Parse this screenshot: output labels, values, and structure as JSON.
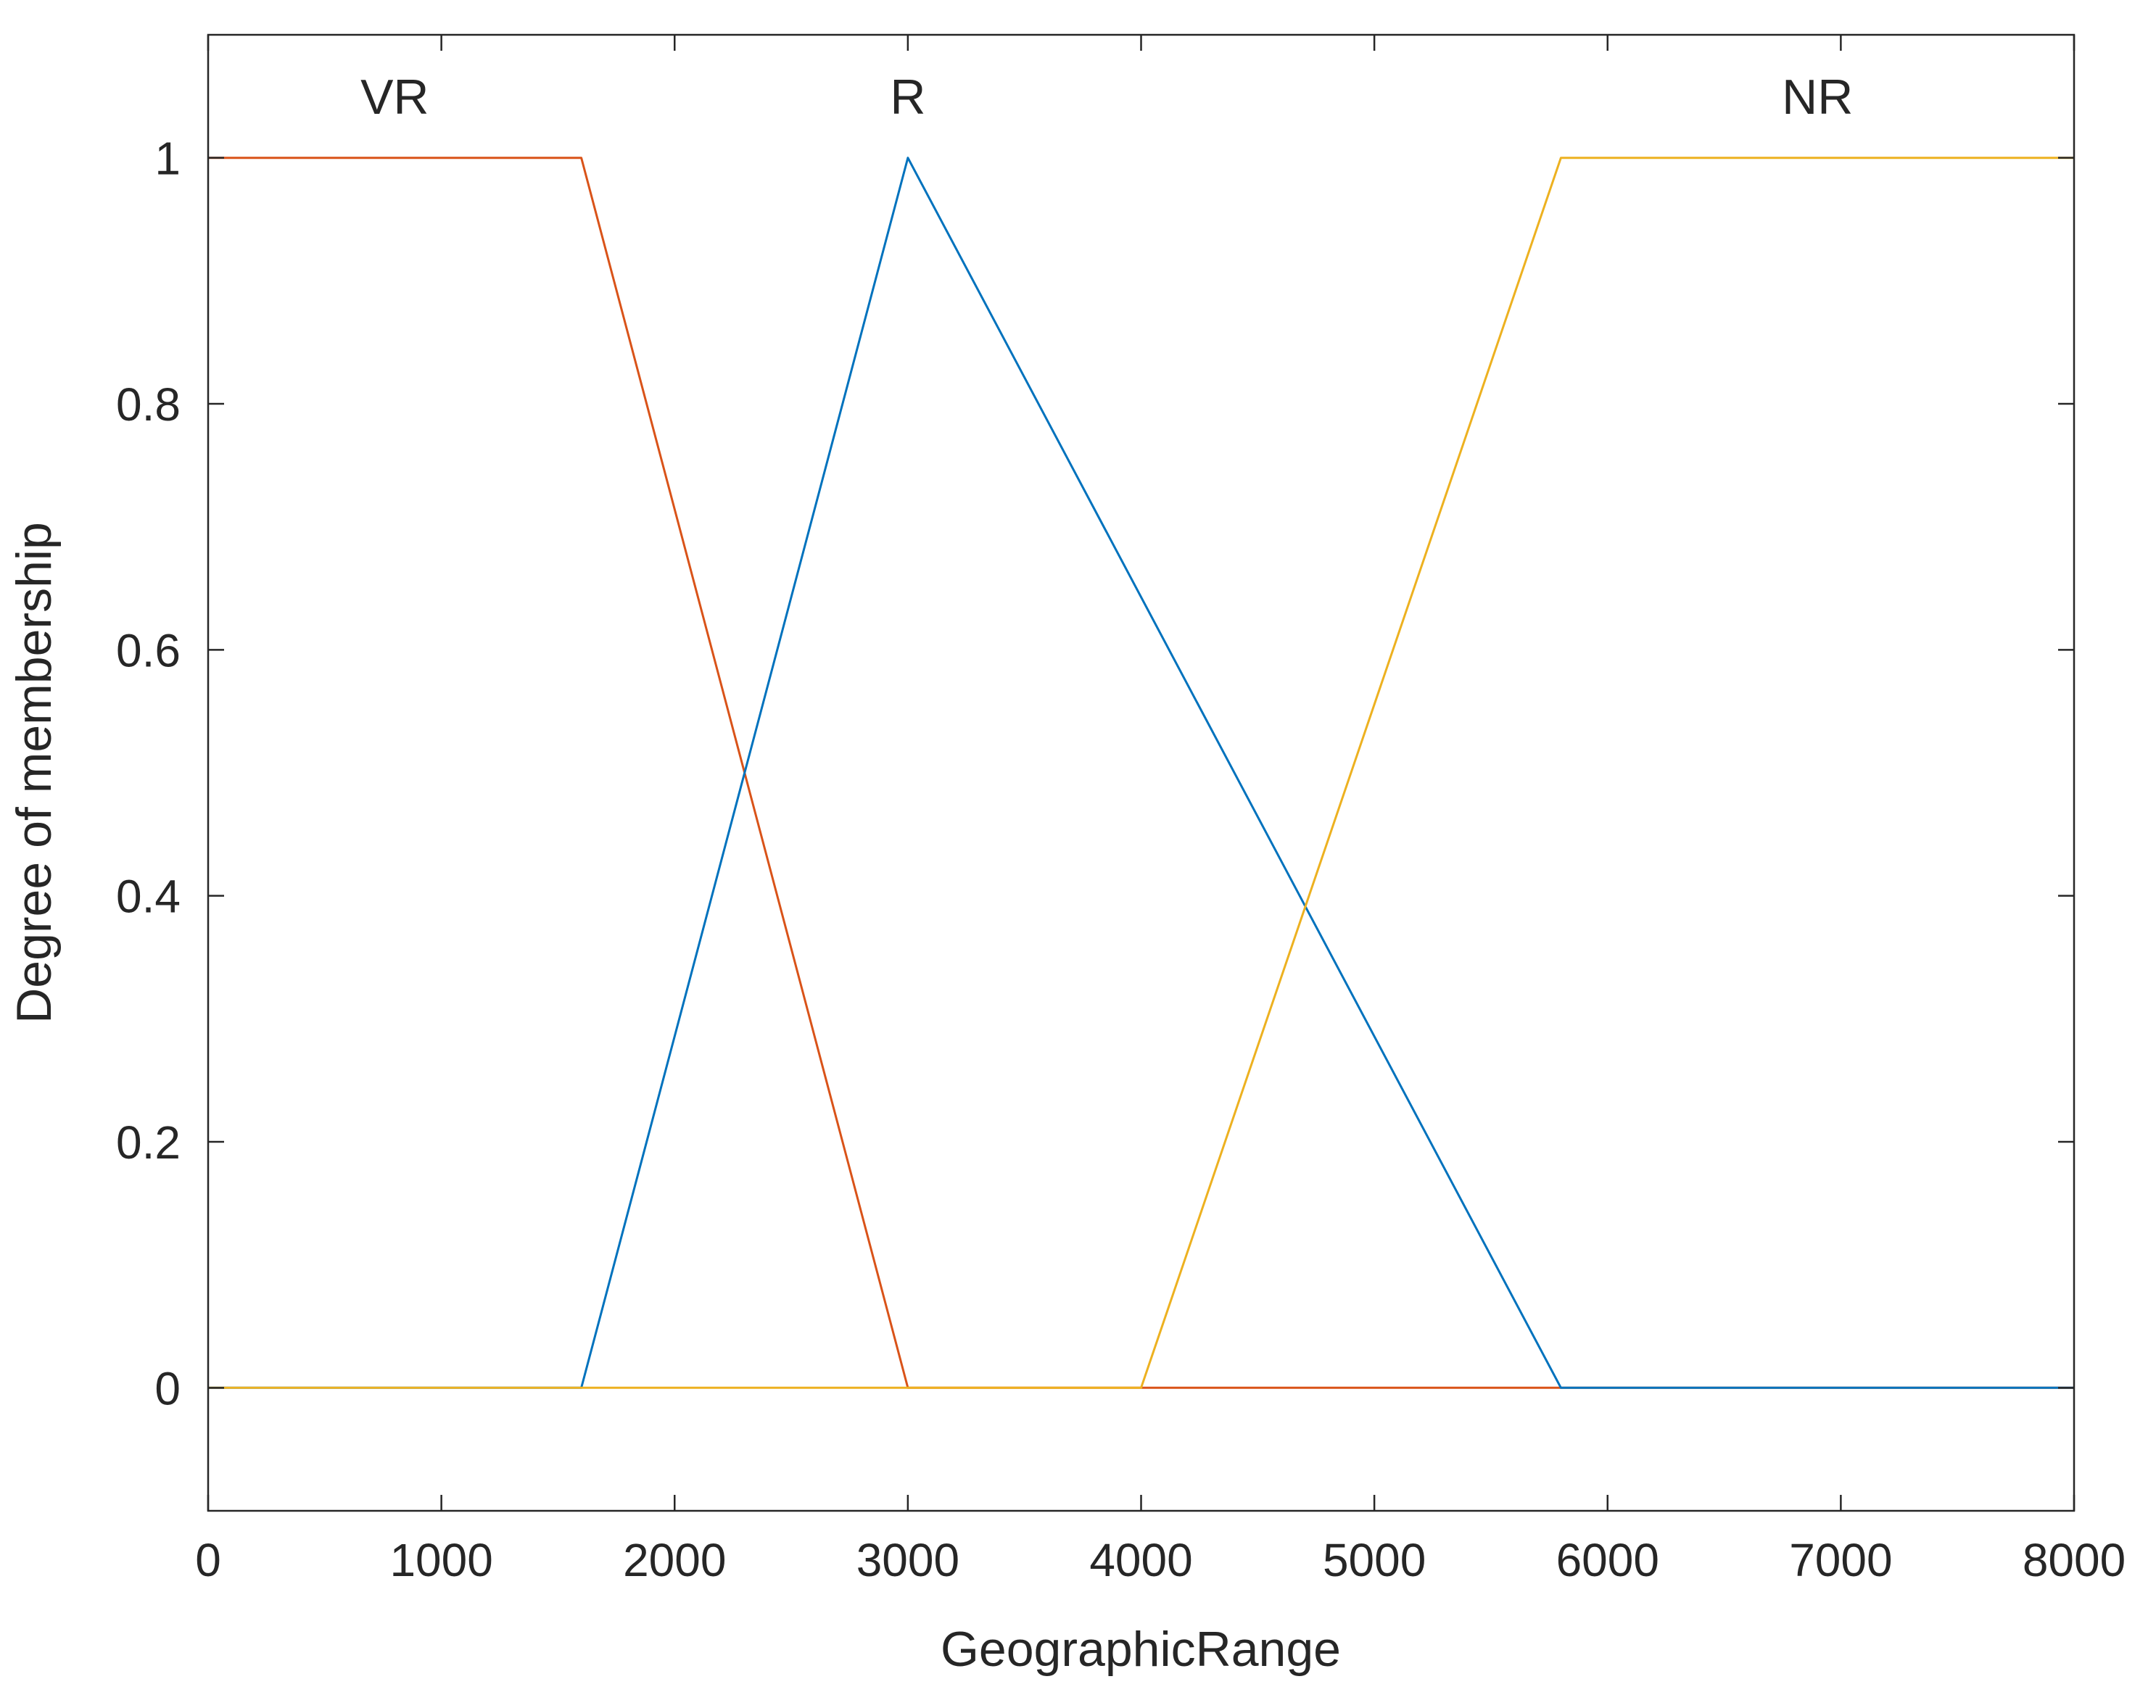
{
  "chart_data": {
    "type": "line",
    "xlabel": "GeographicRange",
    "ylabel": "Degree of membership",
    "xlim": [
      0,
      8000
    ],
    "ylim": [
      -0.1,
      1.1
    ],
    "xticks": [
      0,
      1000,
      2000,
      3000,
      4000,
      5000,
      6000,
      7000,
      8000
    ],
    "yticks": [
      0,
      0.2,
      0.4,
      0.6,
      0.8,
      1
    ],
    "ytick_labels": [
      "0",
      "0.2",
      "0.4",
      "0.6",
      "0.8",
      "1"
    ],
    "grid": false,
    "series": [
      {
        "name": "VR",
        "color": "#D95319",
        "x": [
          0,
          1600,
          3000,
          8000
        ],
        "y": [
          1,
          1,
          0,
          0
        ],
        "label_x": 800
      },
      {
        "name": "R",
        "color": "#0072BD",
        "x": [
          0,
          1600,
          3000,
          5800,
          8000
        ],
        "y": [
          0,
          0,
          1,
          0,
          0
        ],
        "label_x": 3000
      },
      {
        "name": "NR",
        "color": "#EDB120",
        "x": [
          0,
          4000,
          5800,
          8000
        ],
        "y": [
          0,
          0,
          1,
          1
        ],
        "label_x": 6900
      }
    ]
  }
}
